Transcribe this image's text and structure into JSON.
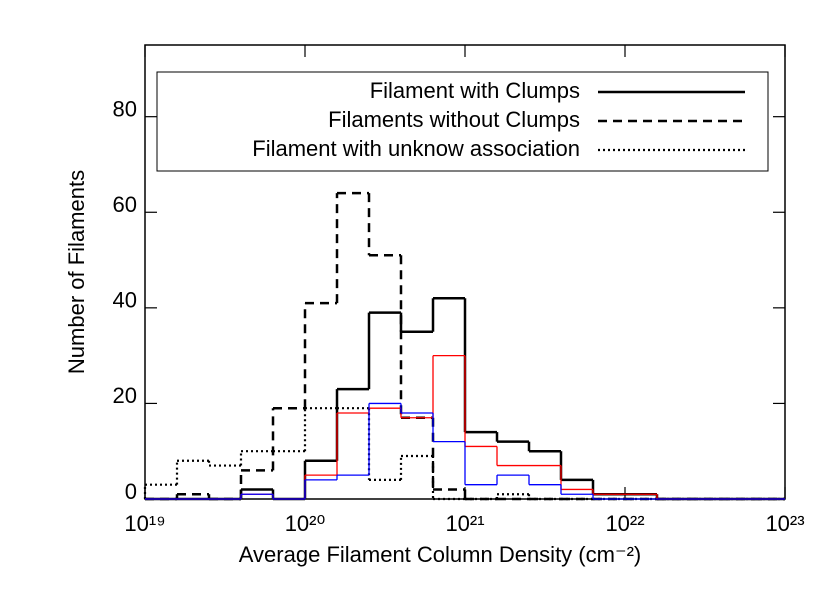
{
  "chart_data": {
    "type": "histogram",
    "xlabel": "Average Filament Column Density (cm⁻²)",
    "ylabel": "Number of Filaments",
    "xscale": "log",
    "xlim": [
      1e+19,
      1e+23
    ],
    "ylim": [
      0,
      95
    ],
    "xticks": [
      {
        "value": 1e+19,
        "label": "10¹⁹"
      },
      {
        "value": 1e+20,
        "label": "10²⁰"
      },
      {
        "value": 1e+21,
        "label": "10²¹"
      },
      {
        "value": 1e+22,
        "label": "10²²"
      },
      {
        "value": 1e+23,
        "label": "10²³"
      }
    ],
    "yticks": [
      0,
      20,
      40,
      60,
      80
    ],
    "legend": "top",
    "bins": [
      1e+19,
      1.585e+19,
      2.512e+19,
      3.981e+19,
      6.31e+19,
      1e+20,
      1.585e+20,
      2.512e+20,
      3.981e+20,
      6.31e+20,
      1e+21,
      1.585e+21,
      2.512e+21,
      3.981e+21,
      6.31e+21,
      1e+22,
      1.585e+22,
      2.512e+22,
      3.981e+22,
      6.31e+22,
      1e+23
    ],
    "series": [
      {
        "name": "Filament with Clumps",
        "color": "#000000",
        "dash": "solid",
        "values": [
          0,
          0,
          0,
          2,
          0,
          8,
          23,
          39,
          35,
          42,
          14,
          12,
          10,
          4,
          1,
          1,
          0,
          0,
          0,
          0
        ]
      },
      {
        "name": "Filaments without Clumps",
        "color": "#000000",
        "dash": "dashed",
        "values": [
          0,
          1,
          0,
          6,
          19,
          41,
          64,
          51,
          17,
          2,
          0,
          0,
          0,
          0,
          0,
          0,
          0,
          0,
          0,
          0
        ]
      },
      {
        "name": "Filament with unknow association",
        "color": "#000000",
        "dash": "dotted",
        "values": [
          3,
          8,
          7,
          10,
          10,
          19,
          19,
          4,
          9,
          0,
          0,
          1,
          0,
          0,
          0,
          0,
          0,
          0,
          0,
          0
        ]
      },
      {
        "color": "#ff0000",
        "dash": "thin",
        "values": [
          0,
          0,
          0,
          1,
          0,
          5,
          18,
          19,
          17,
          30,
          11,
          7,
          7,
          2,
          1,
          1,
          0,
          0,
          0,
          0
        ]
      },
      {
        "color": "#0000ff",
        "dash": "thin",
        "values": [
          0,
          0,
          0,
          1,
          0,
          4,
          5,
          20,
          18,
          12,
          3,
          5,
          3,
          1,
          0,
          0,
          0,
          0,
          0,
          0
        ]
      }
    ]
  }
}
